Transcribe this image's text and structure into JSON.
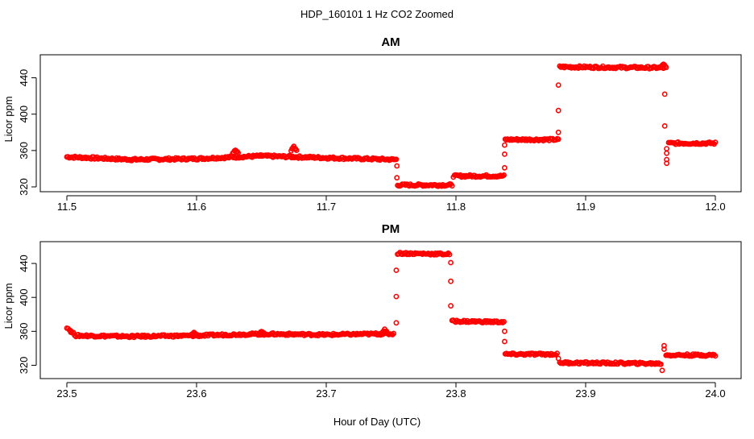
{
  "title": "HDP_160101  1 Hz CO2 Zoomed",
  "xlabel": "Hour of Day (UTC)",
  "chart_data": [
    {
      "type": "scatter",
      "title": "AM",
      "xlabel": "Hour of Day (UTC)",
      "ylabel": "Licor ppm",
      "xlim": [
        11.5,
        12.0
      ],
      "ylim": [
        320,
        460
      ],
      "xticks": [
        11.5,
        11.6,
        11.7,
        11.8,
        11.9,
        12.0
      ],
      "xtick_labels": [
        "11.5",
        "11.6",
        "11.7",
        "11.8",
        "11.9",
        "12.0"
      ],
      "yticks": [
        320,
        360,
        400,
        440
      ],
      "ytick_labels": [
        "320",
        "360",
        "400",
        "440"
      ],
      "color": "#ff0000",
      "grid": false,
      "segments": [
        {
          "x": [
            11.5,
            11.55,
            11.6,
            11.65,
            11.7,
            11.754
          ],
          "y": [
            353,
            350,
            351,
            354,
            352,
            350
          ]
        },
        {
          "x": [
            11.755,
            11.797
          ],
          "y": [
            322,
            322
          ]
        },
        {
          "x": [
            11.798,
            11.837
          ],
          "y": [
            332,
            332
          ]
        },
        {
          "x": [
            11.838,
            11.879
          ],
          "y": [
            372,
            372
          ]
        },
        {
          "x": [
            11.88,
            11.96
          ],
          "y": [
            452,
            451
          ]
        },
        {
          "x": [
            11.964,
            12.0
          ],
          "y": [
            368,
            368
          ]
        }
      ],
      "bumps": [
        {
          "x": 11.63,
          "y": 361
        },
        {
          "x": 11.675,
          "y": 364
        },
        {
          "x": 11.96,
          "y": 455
        }
      ],
      "transitions": [
        {
          "x": 11.7545,
          "y": [
            343,
            330
          ]
        },
        {
          "x": 11.8375,
          "y": [
            341,
            356,
            366
          ]
        },
        {
          "x": 11.879,
          "y": [
            380,
            404,
            432
          ]
        },
        {
          "x": 11.961,
          "y": [
            422,
            387
          ]
        },
        {
          "x": 11.9625,
          "y": [
            346,
            350,
            357,
            362
          ]
        }
      ]
    },
    {
      "type": "scatter",
      "title": "PM",
      "xlabel": "Hour of Day (UTC)",
      "ylabel": "Licor ppm",
      "xlim": [
        23.5,
        24.0
      ],
      "ylim": [
        310,
        460
      ],
      "xticks": [
        23.5,
        23.6,
        23.7,
        23.8,
        23.9,
        24.0
      ],
      "xtick_labels": [
        "23.5",
        "23.6",
        "23.7",
        "23.8",
        "23.9",
        "24.0"
      ],
      "yticks": [
        320,
        360,
        400,
        440
      ],
      "ytick_labels": [
        "320",
        "360",
        "400",
        "440"
      ],
      "color": "#ff0000",
      "grid": false,
      "segments": [
        {
          "x": [
            23.5,
            23.503,
            23.507,
            23.55,
            23.6,
            23.65,
            23.7,
            23.74,
            23.752
          ],
          "y": [
            365,
            360,
            355,
            354,
            355,
            357,
            356,
            357,
            357
          ]
        },
        {
          "x": [
            23.755,
            23.795
          ],
          "y": [
            452,
            451
          ]
        },
        {
          "x": [
            23.797,
            23.837
          ],
          "y": [
            372,
            371
          ]
        },
        {
          "x": [
            23.838,
            23.878
          ],
          "y": [
            333,
            333
          ]
        },
        {
          "x": [
            23.88,
            23.958
          ],
          "y": [
            323,
            322
          ]
        },
        {
          "x": [
            23.962,
            24.0
          ],
          "y": [
            332,
            332
          ]
        }
      ],
      "bumps": [
        {
          "x": 23.598,
          "y": 359
        },
        {
          "x": 23.65,
          "y": 360
        },
        {
          "x": 23.745,
          "y": 362
        }
      ],
      "transitions": [
        {
          "x": 23.754,
          "y": [
            370,
            401,
            432
          ]
        },
        {
          "x": 23.796,
          "y": [
            441,
            419,
            390
          ]
        },
        {
          "x": 23.8375,
          "y": [
            360,
            348
          ]
        },
        {
          "x": 23.879,
          "y": [
            328
          ]
        },
        {
          "x": 23.959,
          "y": [
            314
          ]
        },
        {
          "x": 23.9605,
          "y": [
            343,
            339
          ]
        }
      ]
    }
  ]
}
